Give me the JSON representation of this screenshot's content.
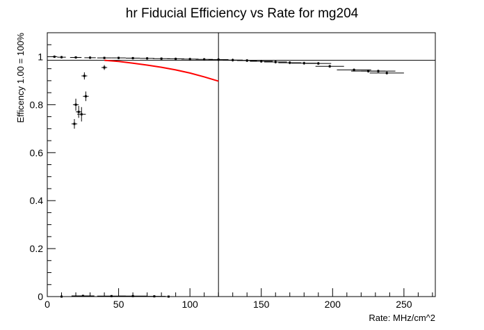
{
  "chart_data": {
    "type": "scatter",
    "title": "hr Fiducial Efficiency vs Rate  for mg204",
    "xlabel": "Rate: MHz/cm^2",
    "ylabel": "Efficency 1.00 = 100%",
    "xlim": [
      0,
      272
    ],
    "ylim": [
      0,
      1.1
    ],
    "x_ticks": [
      0,
      50,
      100,
      150,
      200,
      250
    ],
    "x_tick_labels": [
      "0",
      "50",
      "100",
      "150",
      "200",
      "250"
    ],
    "y_ticks": [
      0,
      0.2,
      0.4,
      0.6,
      0.8,
      1.0
    ],
    "y_tick_labels": [
      "0",
      "0.2",
      "0.4",
      "0.6",
      "0.8",
      "1"
    ],
    "grid": false,
    "reference_lines": {
      "horizontal_y": 0.985,
      "vertical_x": 120
    },
    "fit_curve": {
      "color": "#ff0000",
      "x": [
        40,
        50,
        60,
        70,
        80,
        90,
        100,
        110,
        120
      ],
      "y": [
        0.985,
        0.98,
        0.973,
        0.965,
        0.956,
        0.945,
        0.932,
        0.916,
        0.898
      ]
    },
    "points": [
      {
        "x": 19,
        "y": 0.72,
        "xerr": 2,
        "yerr": 0.02
      },
      {
        "x": 20,
        "y": 0.8,
        "xerr": 2,
        "yerr": 0.025
      },
      {
        "x": 22,
        "y": 0.77,
        "xerr": 2,
        "yerr": 0.025
      },
      {
        "x": 24,
        "y": 0.76,
        "xerr": 3,
        "yerr": 0.03
      },
      {
        "x": 26,
        "y": 0.92,
        "xerr": 2,
        "yerr": 0.015
      },
      {
        "x": 27,
        "y": 0.835,
        "xerr": 2,
        "yerr": 0.02
      },
      {
        "x": 40,
        "y": 0.955,
        "xerr": 2,
        "yerr": 0.01
      },
      {
        "x": 5,
        "y": 1.0,
        "xerr": 2,
        "yerr": 0.005
      },
      {
        "x": 10,
        "y": 0.998,
        "xerr": 3,
        "yerr": 0.005
      },
      {
        "x": 20,
        "y": 0.997,
        "xerr": 4,
        "yerr": 0.005
      },
      {
        "x": 30,
        "y": 0.996,
        "xerr": 4,
        "yerr": 0.005
      },
      {
        "x": 40,
        "y": 0.995,
        "xerr": 5,
        "yerr": 0.005
      },
      {
        "x": 50,
        "y": 0.995,
        "xerr": 5,
        "yerr": 0.005
      },
      {
        "x": 60,
        "y": 0.994,
        "xerr": 5,
        "yerr": 0.005
      },
      {
        "x": 70,
        "y": 0.993,
        "xerr": 5,
        "yerr": 0.005
      },
      {
        "x": 80,
        "y": 0.992,
        "xerr": 6,
        "yerr": 0.005
      },
      {
        "x": 90,
        "y": 0.991,
        "xerr": 6,
        "yerr": 0.005
      },
      {
        "x": 100,
        "y": 0.99,
        "xerr": 6,
        "yerr": 0.005
      },
      {
        "x": 110,
        "y": 0.989,
        "xerr": 6,
        "yerr": 0.005
      },
      {
        "x": 120,
        "y": 0.988,
        "xerr": 7,
        "yerr": 0.006
      },
      {
        "x": 130,
        "y": 0.986,
        "xerr": 7,
        "yerr": 0.006
      },
      {
        "x": 140,
        "y": 0.984,
        "xerr": 7,
        "yerr": 0.006
      },
      {
        "x": 150,
        "y": 0.981,
        "xerr": 8,
        "yerr": 0.006
      },
      {
        "x": 160,
        "y": 0.978,
        "xerr": 8,
        "yerr": 0.006
      },
      {
        "x": 170,
        "y": 0.975,
        "xerr": 8,
        "yerr": 0.006
      },
      {
        "x": 180,
        "y": 0.973,
        "xerr": 9,
        "yerr": 0.006
      },
      {
        "x": 190,
        "y": 0.972,
        "xerr": 9,
        "yerr": 0.006
      },
      {
        "x": 198,
        "y": 0.96,
        "xerr": 10,
        "yerr": 0.006
      },
      {
        "x": 215,
        "y": 0.945,
        "xerr": 12,
        "yerr": 0.006
      },
      {
        "x": 225,
        "y": 0.94,
        "xerr": 12,
        "yerr": 0.006
      },
      {
        "x": 232,
        "y": 0.94,
        "xerr": 12,
        "yerr": 0.006
      },
      {
        "x": 238,
        "y": 0.932,
        "xerr": 12,
        "yerr": 0.006
      },
      {
        "x": 10,
        "y": 0.0,
        "xerr": 5,
        "yerr": 0.004
      },
      {
        "x": 25,
        "y": 0.003,
        "xerr": 8,
        "yerr": 0.004
      },
      {
        "x": 45,
        "y": 0.002,
        "xerr": 10,
        "yerr": 0.004
      },
      {
        "x": 60,
        "y": 0.002,
        "xerr": 10,
        "yerr": 0.004
      },
      {
        "x": 75,
        "y": 0.001,
        "xerr": 8,
        "yerr": 0.004
      },
      {
        "x": 85,
        "y": 0.0,
        "xerr": 5,
        "yerr": 0.003
      }
    ]
  }
}
